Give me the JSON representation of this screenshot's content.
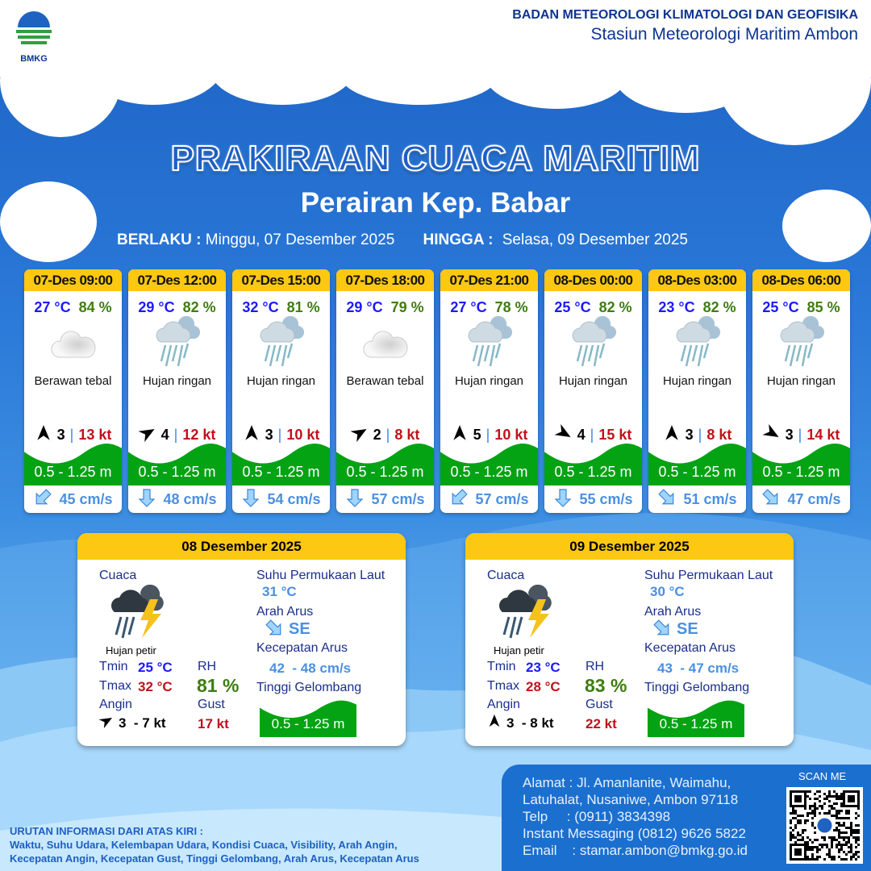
{
  "header": {
    "logo_text": "BMKG",
    "agency": "BADAN METEOROLOGI KLIMATOLOGI DAN GEOFISIKA",
    "station": "Stasiun Meteorologi Maritim Ambon"
  },
  "title": "PRAKIRAAN CUACA MARITIM",
  "subtitle": "Perairan Kep. Babar",
  "period": {
    "from_label": "BERLAKU :",
    "from": "Minggu, 07 Desember 2025",
    "to_label": "HINGGA :",
    "to": "Selasa, 09 Desember 2025"
  },
  "colors": {
    "header_yellow": "#fcc812",
    "wave_green": "#03a313",
    "temp_blue": "#1a1aff",
    "rh_green": "#3e7d0f",
    "gust_red": "#c0121a",
    "current_blue": "#4a90e2"
  },
  "forecasts": [
    {
      "time": "07-Des 09:00",
      "temp": "27 °C",
      "rh": "84 %",
      "icon": "cloudy-icon",
      "condition": "Berawan tebal",
      "wind_arrow_deg": 180,
      "wind": "3",
      "gust": "13 kt",
      "wave": "0.5 - 1.25 m",
      "current_arrow_deg": 225,
      "current": "45 cm/s"
    },
    {
      "time": "07-Des 12:00",
      "temp": "29 °C",
      "rh": "82 %",
      "icon": "light-rain-icon",
      "condition": "Hujan ringan",
      "wind_arrow_deg": 240,
      "wind": "4",
      "gust": "12 kt",
      "wave": "0.5 - 1.25 m",
      "current_arrow_deg": 180,
      "current": "48 cm/s"
    },
    {
      "time": "07-Des 15:00",
      "temp": "32 °C",
      "rh": "81 %",
      "icon": "light-rain-icon",
      "condition": "Hujan ringan",
      "wind_arrow_deg": 180,
      "wind": "3",
      "gust": "10 kt",
      "wave": "0.5 - 1.25 m",
      "current_arrow_deg": 180,
      "current": "54 cm/s"
    },
    {
      "time": "07-Des 18:00",
      "temp": "29 °C",
      "rh": "79 %",
      "icon": "cloudy-icon",
      "condition": "Berawan tebal",
      "wind_arrow_deg": 240,
      "wind": "2",
      "gust": "8 kt",
      "wave": "0.5 - 1.25 m",
      "current_arrow_deg": 180,
      "current": "57 cm/s"
    },
    {
      "time": "07-Des 21:00",
      "temp": "27 °C",
      "rh": "78 %",
      "icon": "light-rain-icon",
      "condition": "Hujan ringan",
      "wind_arrow_deg": 180,
      "wind": "5",
      "gust": "10 kt",
      "wave": "0.5 - 1.25 m",
      "current_arrow_deg": 225,
      "current": "57 cm/s"
    },
    {
      "time": "08-Des 00:00",
      "temp": "25 °C",
      "rh": "82 %",
      "icon": "light-rain-icon",
      "condition": "Hujan ringan",
      "wind_arrow_deg": 300,
      "wind": "4",
      "gust": "15 kt",
      "wave": "0.5 - 1.25 m",
      "current_arrow_deg": 180,
      "current": "55 cm/s"
    },
    {
      "time": "08-Des 03:00",
      "temp": "23 °C",
      "rh": "82 %",
      "icon": "light-rain-icon",
      "condition": "Hujan ringan",
      "wind_arrow_deg": 180,
      "wind": "3",
      "gust": "8 kt",
      "wave": "0.5 - 1.25 m",
      "current_arrow_deg": 135,
      "current": "51 cm/s"
    },
    {
      "time": "08-Des 06:00",
      "temp": "25 °C",
      "rh": "85 %",
      "icon": "light-rain-icon",
      "condition": "Hujan ringan",
      "wind_arrow_deg": 300,
      "wind": "3",
      "gust": "14 kt",
      "wave": "0.5 - 1.25 m",
      "current_arrow_deg": 135,
      "current": "47 cm/s"
    }
  ],
  "daily": [
    {
      "date": "08 Desember 2025",
      "weather_label": "Cuaca",
      "icon": "thunderstorm-icon",
      "condition": "Hujan petir",
      "tmin_label": "Tmin",
      "tmin": "25 °C",
      "tmax_label": "Tmax",
      "tmax": "32 °C",
      "rh_label": "RH",
      "rh": "81 %",
      "wind_label": "Angin",
      "wind_arrow_deg": 240,
      "wind": "3  - 7 kt",
      "gust_label": "Gust",
      "gust": "17 kt",
      "sst_label": "Suhu Permukaan Laut",
      "sst": "31 °C",
      "cur_dir_label": "Arah Arus",
      "cur_dir": "SE",
      "cur_speed_label": "Kecepatan Arus",
      "cur_speed": "42  - 48 cm/s",
      "wave_label": "Tinggi Gelombang",
      "wave": "0.5 - 1.25 m"
    },
    {
      "date": "09 Desember 2025",
      "weather_label": "Cuaca",
      "icon": "thunderstorm-icon",
      "condition": "Hujan petir",
      "tmin_label": "Tmin",
      "tmin": "23 °C",
      "tmax_label": "Tmax",
      "tmax": "28 °C",
      "rh_label": "RH",
      "rh": "83 %",
      "wind_label": "Angin",
      "wind_arrow_deg": 180,
      "wind": "3  - 8 kt",
      "gust_label": "Gust",
      "gust": "22 kt",
      "sst_label": "Suhu Permukaan Laut",
      "sst": "30 °C",
      "cur_dir_label": "Arah Arus",
      "cur_dir": "SE",
      "cur_speed_label": "Kecepatan Arus",
      "cur_speed": "43  - 47 cm/s",
      "wave_label": "Tinggi Gelombang",
      "wave": "0.5 - 1.25 m"
    }
  ],
  "legend": {
    "title": "URUTAN INFORMASI DARI ATAS KIRI :",
    "line1": "Waktu, Suhu Udara, Kelembapan Udara, Kondisi Cuaca, Visibility, Arah Angin,",
    "line2": "Kecepatan Angin, Kecepatan Gust, Tinggi Gelombang, Arah Arus, Kecepatan Arus"
  },
  "contact": {
    "address1": "Alamat : Jl. Amanlanite, Waimahu,",
    "address2": "Latuhalat, Nusaniwe, Ambon 97118",
    "phone": "Telp     : (0911) 3834398",
    "im": "Instant Messaging (0812) 9626 5822",
    "email": "Email    : stamar.ambon@bmkg.go.id",
    "scan_label": "SCAN ME"
  }
}
